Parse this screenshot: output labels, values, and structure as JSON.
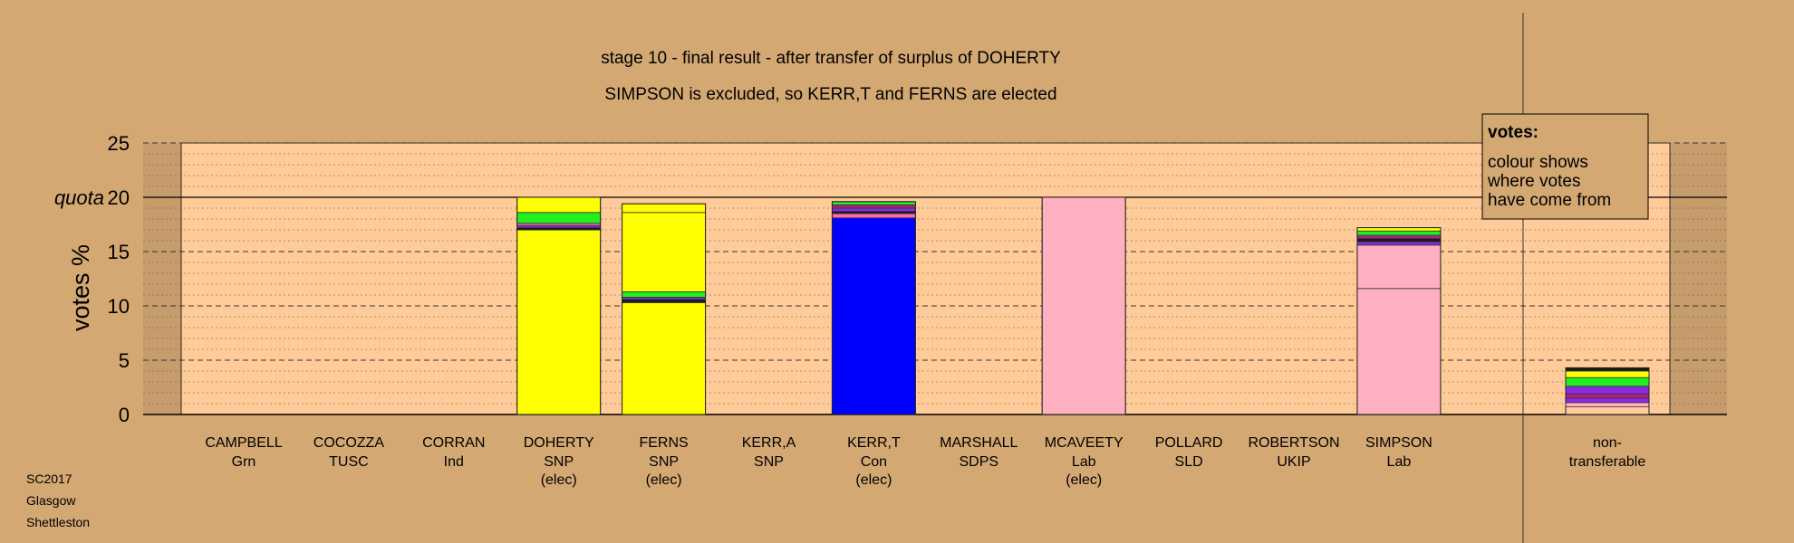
{
  "colors": {
    "background": "#d4a873",
    "plot_area": "#ffcc99",
    "shade": "#c79c6c"
  },
  "chart_data": {
    "type": "bar",
    "stacked": true,
    "title": "stage 10 - final result - after transfer of surplus of DOHERTY",
    "subtitle": "SIMPSON is excluded, so KERR,T and FERNS are elected",
    "ylabel": "votes %",
    "ylim": [
      0,
      25
    ],
    "yticks": [
      "0",
      "5",
      "10",
      "15",
      "quota 20",
      "25"
    ],
    "quota_label": "quota",
    "quota": 20,
    "grid": true,
    "legend": {
      "title": "votes:",
      "lines": [
        "colour shows",
        "where votes",
        "have come from"
      ],
      "placement": "top-right"
    },
    "candidates": [
      {
        "name": "CAMPBELL",
        "party": "Grn",
        "status": "",
        "segments": []
      },
      {
        "name": "COCOZZA",
        "party": "TUSC",
        "status": "",
        "segments": []
      },
      {
        "name": "CORRAN",
        "party": "Ind",
        "status": "",
        "segments": []
      },
      {
        "name": "DOHERTY",
        "party": "SNP",
        "status": "(elec)",
        "segments": [
          {
            "value": 17.0,
            "color": "#ffff00"
          },
          {
            "value": 0.2,
            "color": "#1a1a1a"
          },
          {
            "value": 0.2,
            "color": "#8a2be2"
          },
          {
            "value": 0.2,
            "color": "#ff69b4"
          },
          {
            "value": 1.0,
            "color": "#22ee22"
          },
          {
            "value": 1.4,
            "color": "#ffff00"
          }
        ]
      },
      {
        "name": "FERNS",
        "party": "SNP",
        "status": "(elec)",
        "segments": [
          {
            "value": 10.3,
            "color": "#ffff00"
          },
          {
            "value": 0.3,
            "color": "#1a1a1a"
          },
          {
            "value": 0.2,
            "color": "#8a2be2"
          },
          {
            "value": 0.5,
            "color": "#22ee22"
          },
          {
            "value": 7.3,
            "color": "#ffff00"
          },
          {
            "value": 0.8,
            "color": "#ffff00"
          }
        ]
      },
      {
        "name": "KERR,A",
        "party": "SNP",
        "status": "",
        "segments": []
      },
      {
        "name": "KERR,T",
        "party": "Con",
        "status": "(elec)",
        "segments": [
          {
            "value": 18.1,
            "color": "#0000ff"
          },
          {
            "value": 0.4,
            "color": "#ff69b4"
          },
          {
            "value": 0.2,
            "color": "#1a1a1a"
          },
          {
            "value": 0.3,
            "color": "#8a2be2"
          },
          {
            "value": 0.3,
            "color": "#b0208a"
          },
          {
            "value": 0.3,
            "color": "#22ee22"
          }
        ]
      },
      {
        "name": "MARSHALL",
        "party": "SDPS",
        "status": "",
        "segments": []
      },
      {
        "name": "MCAVEETY",
        "party": "Lab",
        "status": "(elec)",
        "segments": [
          {
            "value": 20.0,
            "color": "#ffb0c0"
          }
        ]
      },
      {
        "name": "POLLARD",
        "party": "SLD",
        "status": "",
        "segments": []
      },
      {
        "name": "ROBERTSON",
        "party": "UKIP",
        "status": "",
        "segments": []
      },
      {
        "name": "SIMPSON",
        "party": "Lab",
        "status": "",
        "segments": [
          {
            "value": 11.6,
            "color": "#ffb0c0"
          },
          {
            "value": 4.0,
            "color": "#ffb0c0"
          },
          {
            "value": 0.3,
            "color": "#8a2be2"
          },
          {
            "value": 0.3,
            "color": "#1a1a1a"
          },
          {
            "value": 0.3,
            "color": "#b0208a"
          },
          {
            "value": 0.4,
            "color": "#22ee22"
          },
          {
            "value": 0.3,
            "color": "#ffff00"
          }
        ]
      }
    ],
    "nontransferable": {
      "label_lines": [
        "non-",
        "transferable"
      ],
      "segments": [
        {
          "value": 0.7,
          "color": "#ffcc99"
        },
        {
          "value": 0.4,
          "color": "#ffb0c0"
        },
        {
          "value": 0.4,
          "color": "#8a2be2"
        },
        {
          "value": 0.4,
          "color": "#b0208a"
        },
        {
          "value": 0.7,
          "color": "#8a2be2"
        },
        {
          "value": 0.8,
          "color": "#22ee22"
        },
        {
          "value": 0.6,
          "color": "#ffff00"
        },
        {
          "value": 0.3,
          "color": "#1a1a1a"
        }
      ]
    }
  },
  "caption": {
    "line1": "SC2017",
    "line2": "Glasgow",
    "line3": "Shettleston"
  }
}
